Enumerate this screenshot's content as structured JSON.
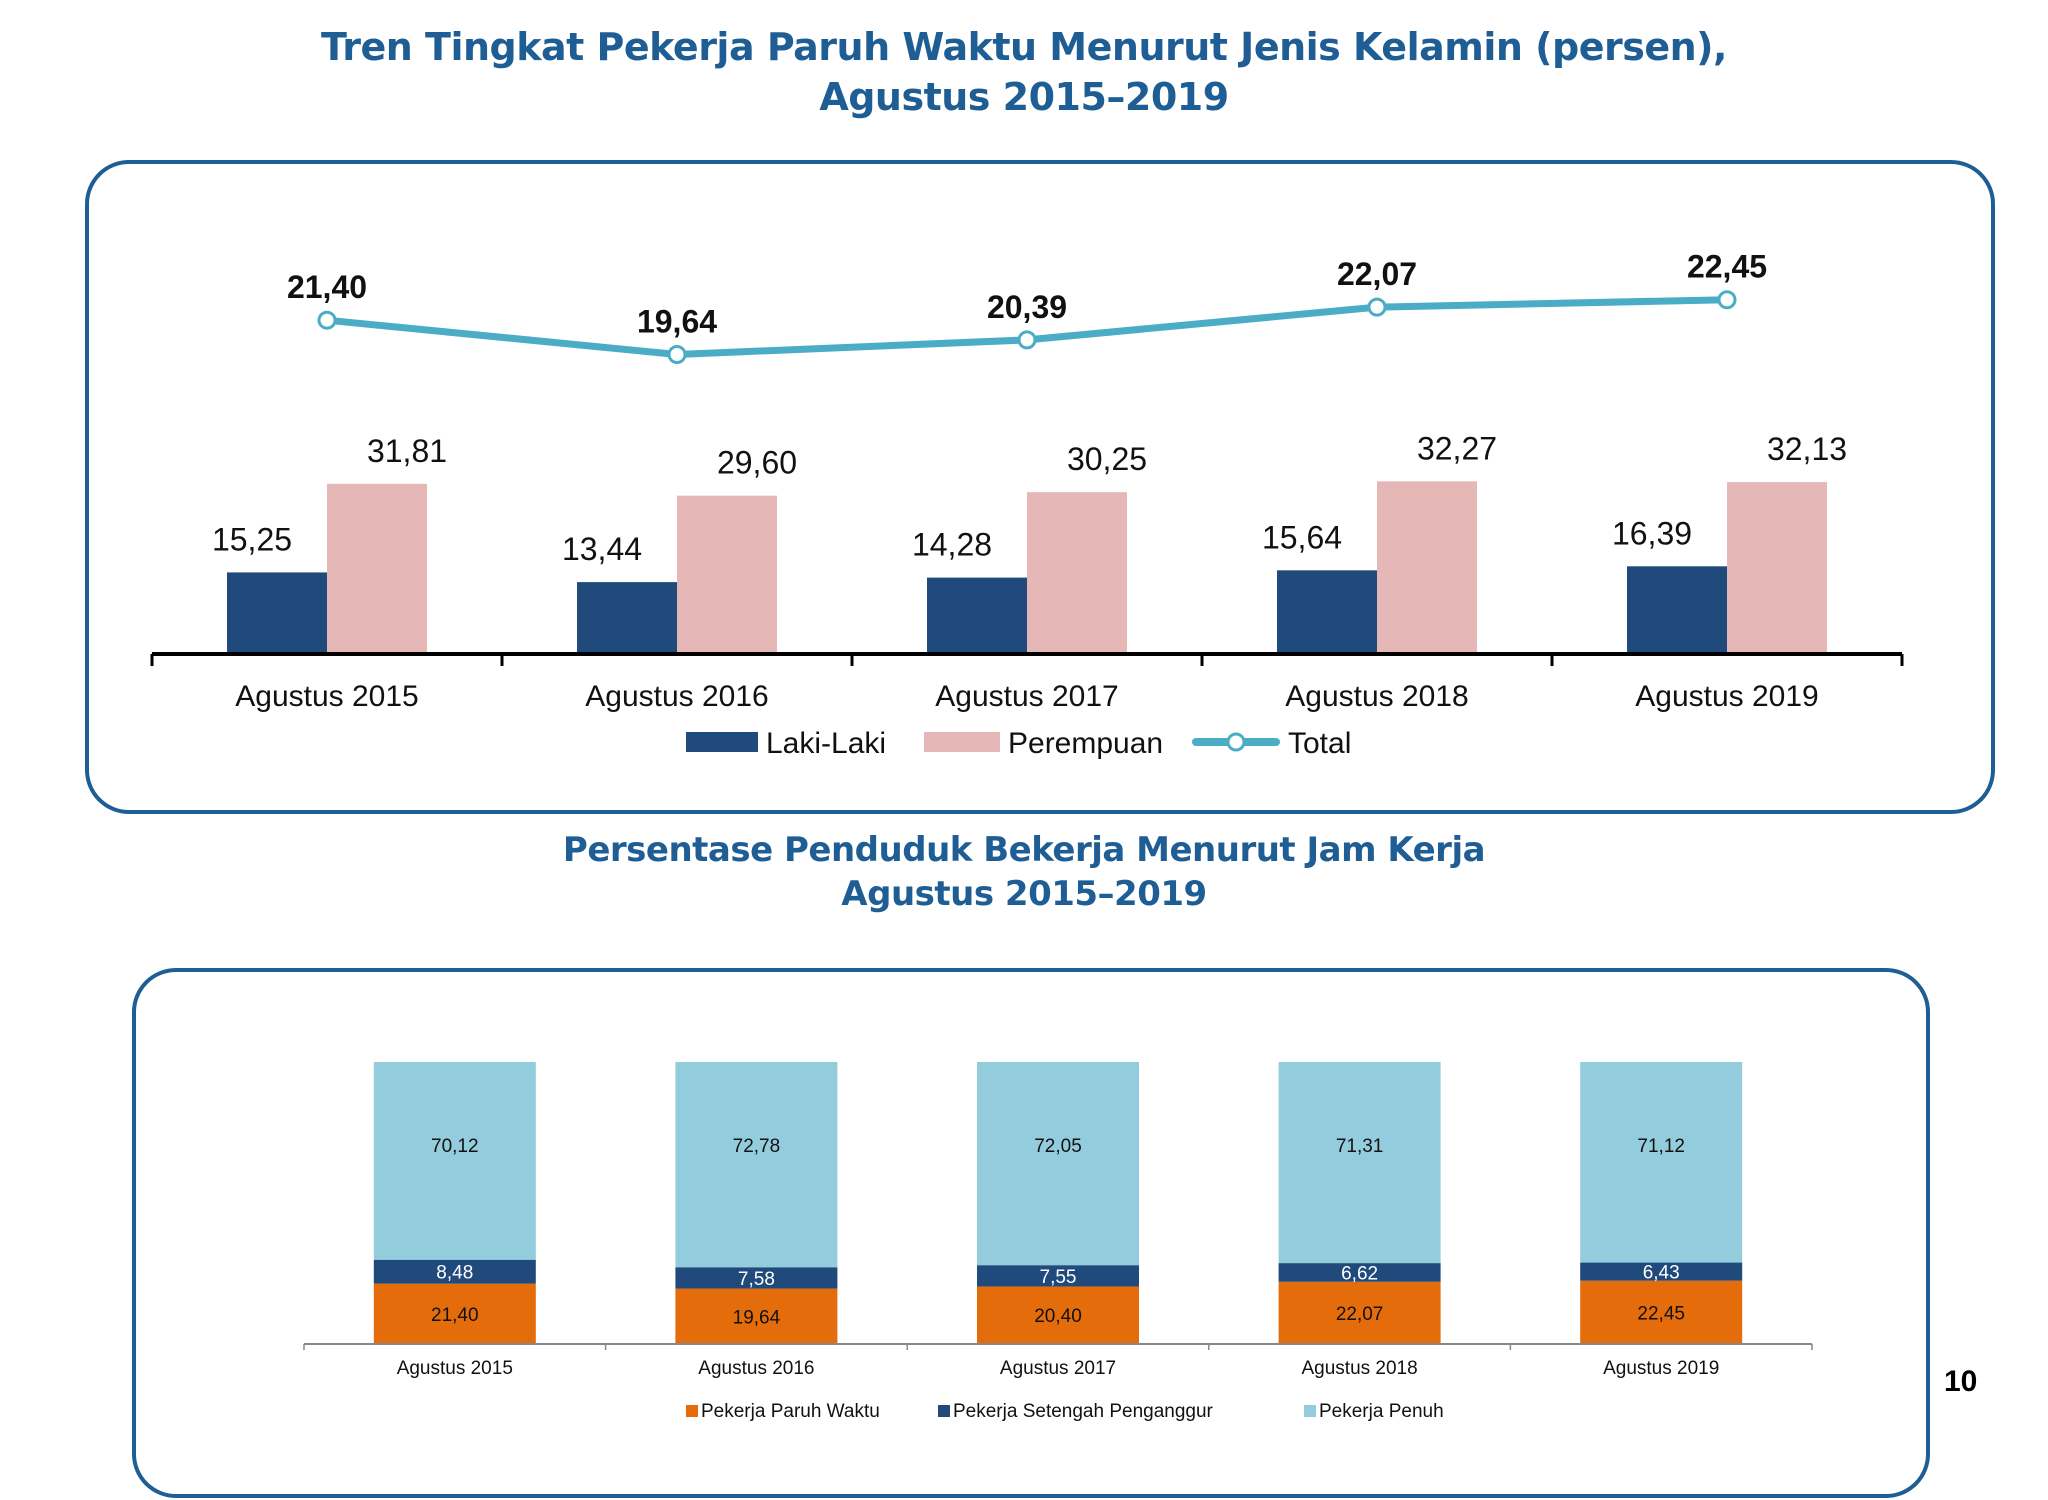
{
  "page_number": "10",
  "colors": {
    "laki": "#214a7c",
    "perempuan": "#e5b7b7",
    "total": "#4bacc6",
    "paruh_waktu": "#e46c0a",
    "setengah_penganggur": "#214a7c",
    "penuh": "#93cddd",
    "title": "#1f5e95"
  },
  "chart_data": [
    {
      "type": "bar",
      "title": "Tren Tingkat Pekerja Paruh Waktu Menurut Jenis Kelamin (persen),",
      "subtitle": "Agustus 2015–2019",
      "xlabel": "",
      "ylabel": "",
      "grid": false,
      "legend": "bottom",
      "categories": [
        "Agustus 2015",
        "Agustus 2016",
        "Agustus 2017",
        "Agustus 2018",
        "Agustus 2019"
      ],
      "series": [
        {
          "name": "Laki-Laki",
          "type": "bar",
          "values": [
            15.25,
            13.44,
            14.28,
            15.64,
            16.39
          ],
          "labels": [
            "15,25",
            "13,44",
            "14,28",
            "15,64",
            "16,39"
          ]
        },
        {
          "name": "Perempuan",
          "type": "bar",
          "values": [
            31.81,
            29.6,
            30.25,
            32.27,
            32.13
          ],
          "labels": [
            "31,81",
            "29,60",
            "30,25",
            "32,27",
            "32,13"
          ]
        },
        {
          "name": "Total",
          "type": "line",
          "values": [
            21.4,
            19.64,
            20.39,
            22.07,
            22.45
          ],
          "labels": [
            "21,40",
            "19,64",
            "20,39",
            "22,07",
            "22,45"
          ]
        }
      ]
    },
    {
      "type": "bar",
      "stacked": true,
      "title": "Persentase Penduduk Bekerja Menurut Jam Kerja",
      "subtitle": "Agustus 2015–2019",
      "xlabel": "",
      "ylabel": "",
      "grid": false,
      "legend": "bottom",
      "ylim": [
        0,
        100
      ],
      "categories": [
        "Agustus 2015",
        "Agustus 2016",
        "Agustus 2017",
        "Agustus 2018",
        "Agustus 2019"
      ],
      "series": [
        {
          "name": "Pekerja Paruh Waktu",
          "values": [
            21.4,
            19.64,
            20.4,
            22.07,
            22.45
          ],
          "labels": [
            "21,40",
            "19,64",
            "20,40",
            "22,07",
            "22,45"
          ]
        },
        {
          "name": "Pekerja Setengah Penganggur",
          "values": [
            8.48,
            7.58,
            7.55,
            6.62,
            6.43
          ],
          "labels": [
            "8,48",
            "7,58",
            "7,55",
            "6,62",
            "6,43"
          ]
        },
        {
          "name": "Pekerja Penuh",
          "values": [
            70.12,
            72.78,
            72.05,
            71.31,
            71.12
          ],
          "labels": [
            "70,12",
            "72,78",
            "72,05",
            "71,31",
            "71,12"
          ]
        }
      ]
    }
  ]
}
